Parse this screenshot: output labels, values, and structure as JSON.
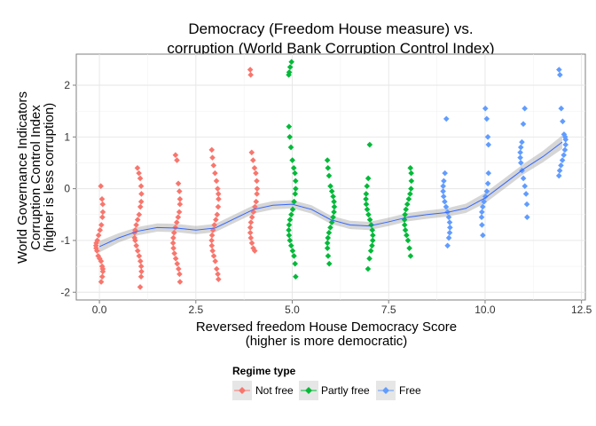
{
  "chart_data": {
    "type": "scatter",
    "title_lines": [
      "Democracy (Freedom House measure) vs.",
      "corruption (World Bank Corruption Control Index)"
    ],
    "xlabel_lines": [
      "Reversed freedom House Democracy Score",
      "(higher is more democratic)"
    ],
    "ylabel_lines": [
      "World Governance Indicators",
      "Corruption Control Index",
      "(higher is less corruption)"
    ],
    "xlim": [
      -0.6,
      12.6
    ],
    "ylim": [
      -2.15,
      2.6
    ],
    "x_ticks": [
      0,
      2.5,
      5,
      7.5,
      10,
      12.5
    ],
    "x_tick_labels": [
      "0.0",
      "2.5",
      "5.0",
      "7.5",
      "10.0",
      "12.5"
    ],
    "y_ticks": [
      -2,
      -1,
      0,
      1,
      2
    ],
    "y_tick_labels": [
      "-2",
      "-1",
      "0",
      "1",
      "2"
    ],
    "grid": true,
    "legend": {
      "title": "Regime type",
      "position": "bottom",
      "entries": [
        {
          "label": "Not free",
          "color": "#F8766D"
        },
        {
          "label": "Partly free",
          "color": "#00BA38"
        },
        {
          "label": "Free",
          "color": "#619CFF"
        }
      ]
    },
    "series": [
      {
        "name": "Not free",
        "color": "#F8766D",
        "points": [
          [
            0,
            0.05
          ],
          [
            0,
            -0.2
          ],
          [
            0,
            -0.3
          ],
          [
            0,
            -0.45
          ],
          [
            0,
            -0.55
          ],
          [
            0,
            -0.7
          ],
          [
            0,
            -0.8
          ],
          [
            0,
            -0.9
          ],
          [
            0,
            -1.0
          ],
          [
            0,
            -1.05
          ],
          [
            0,
            -1.1
          ],
          [
            0,
            -1.15
          ],
          [
            0,
            -1.2
          ],
          [
            0,
            -1.3
          ],
          [
            0,
            -1.35
          ],
          [
            0,
            -1.4
          ],
          [
            0,
            -1.5
          ],
          [
            0,
            -1.55
          ],
          [
            0,
            -1.6
          ],
          [
            0,
            -1.7
          ],
          [
            0,
            -1.8
          ],
          [
            1,
            0.4
          ],
          [
            1,
            0.3
          ],
          [
            1,
            0.2
          ],
          [
            1,
            0.05
          ],
          [
            1,
            -0.1
          ],
          [
            1,
            -0.25
          ],
          [
            1,
            -0.35
          ],
          [
            1,
            -0.5
          ],
          [
            1,
            -0.6
          ],
          [
            1,
            -0.7
          ],
          [
            1,
            -0.8
          ],
          [
            1,
            -0.85
          ],
          [
            1,
            -0.95
          ],
          [
            1,
            -1.0
          ],
          [
            1,
            -1.1
          ],
          [
            1,
            -1.2
          ],
          [
            1,
            -1.3
          ],
          [
            1,
            -1.4
          ],
          [
            1,
            -1.5
          ],
          [
            1,
            -1.6
          ],
          [
            1,
            -1.7
          ],
          [
            1,
            -1.9
          ],
          [
            2,
            0.65
          ],
          [
            2,
            0.55
          ],
          [
            2,
            0.1
          ],
          [
            2,
            -0.05
          ],
          [
            2,
            -0.2
          ],
          [
            2,
            -0.3
          ],
          [
            2,
            -0.45
          ],
          [
            2,
            -0.55
          ],
          [
            2,
            -0.65
          ],
          [
            2,
            -0.75
          ],
          [
            2,
            -0.85
          ],
          [
            2,
            -0.95
          ],
          [
            2,
            -1.05
          ],
          [
            2,
            -1.15
          ],
          [
            2,
            -1.25
          ],
          [
            2,
            -1.35
          ],
          [
            2,
            -1.45
          ],
          [
            2,
            -1.55
          ],
          [
            2,
            -1.65
          ],
          [
            2,
            -1.8
          ],
          [
            3,
            0.75
          ],
          [
            3,
            0.6
          ],
          [
            3,
            0.45
          ],
          [
            3,
            0.3
          ],
          [
            3,
            0.15
          ],
          [
            3,
            0.0
          ],
          [
            3,
            -0.1
          ],
          [
            3,
            -0.2
          ],
          [
            3,
            -0.35
          ],
          [
            3,
            -0.5
          ],
          [
            3,
            -0.6
          ],
          [
            3,
            -0.7
          ],
          [
            3,
            -0.8
          ],
          [
            3,
            -0.9
          ],
          [
            3,
            -1.0
          ],
          [
            3,
            -1.1
          ],
          [
            3,
            -1.2
          ],
          [
            3,
            -1.3
          ],
          [
            3,
            -1.4
          ],
          [
            3,
            -1.55
          ],
          [
            3,
            -1.65
          ],
          [
            3,
            -1.75
          ],
          [
            4,
            2.3
          ],
          [
            4,
            2.2
          ],
          [
            4,
            0.7
          ],
          [
            4,
            0.55
          ],
          [
            4,
            0.4
          ],
          [
            4,
            0.3
          ],
          [
            4,
            0.15
          ],
          [
            4,
            0.0
          ],
          [
            4,
            -0.1
          ],
          [
            4,
            -0.25
          ],
          [
            4,
            -0.35
          ],
          [
            4,
            -0.45
          ],
          [
            4,
            -0.55
          ],
          [
            4,
            -0.65
          ],
          [
            4,
            -0.75
          ],
          [
            4,
            -0.85
          ],
          [
            4,
            -0.95
          ],
          [
            4,
            -1.05
          ],
          [
            4,
            -1.15
          ],
          [
            4,
            -1.2
          ]
        ]
      },
      {
        "name": "Partly free",
        "color": "#00BA38",
        "points": [
          [
            5,
            2.45
          ],
          [
            5,
            2.35
          ],
          [
            5,
            2.25
          ],
          [
            5,
            2.2
          ],
          [
            5,
            1.2
          ],
          [
            5,
            1.0
          ],
          [
            5,
            0.8
          ],
          [
            5,
            0.55
          ],
          [
            5,
            0.4
          ],
          [
            5,
            0.3
          ],
          [
            5,
            0.15
          ],
          [
            5,
            0.0
          ],
          [
            5,
            -0.1
          ],
          [
            5,
            -0.25
          ],
          [
            5,
            -0.4
          ],
          [
            5,
            -0.5
          ],
          [
            5,
            -0.6
          ],
          [
            5,
            -0.7
          ],
          [
            5,
            -0.8
          ],
          [
            5,
            -0.9
          ],
          [
            5,
            -1.0
          ],
          [
            5,
            -1.1
          ],
          [
            5,
            -1.2
          ],
          [
            5,
            -1.3
          ],
          [
            5,
            -1.45
          ],
          [
            5,
            -1.7
          ],
          [
            6,
            0.55
          ],
          [
            6,
            0.4
          ],
          [
            6,
            0.25
          ],
          [
            6,
            0.05
          ],
          [
            6,
            -0.05
          ],
          [
            6,
            -0.15
          ],
          [
            6,
            -0.25
          ],
          [
            6,
            -0.35
          ],
          [
            6,
            -0.45
          ],
          [
            6,
            -0.55
          ],
          [
            6,
            -0.65
          ],
          [
            6,
            -0.75
          ],
          [
            6,
            -0.85
          ],
          [
            6,
            -0.95
          ],
          [
            6,
            -1.05
          ],
          [
            6,
            -1.15
          ],
          [
            6,
            -1.3
          ],
          [
            6,
            -1.45
          ],
          [
            7,
            0.85
          ],
          [
            7,
            0.2
          ],
          [
            7,
            0.05
          ],
          [
            7,
            -0.1
          ],
          [
            7,
            -0.2
          ],
          [
            7,
            -0.3
          ],
          [
            7,
            -0.4
          ],
          [
            7,
            -0.5
          ],
          [
            7,
            -0.6
          ],
          [
            7,
            -0.7
          ],
          [
            7,
            -0.8
          ],
          [
            7,
            -0.9
          ],
          [
            7,
            -1.0
          ],
          [
            7,
            -1.1
          ],
          [
            7,
            -1.2
          ],
          [
            7,
            -1.35
          ],
          [
            7,
            -1.55
          ],
          [
            8,
            0.4
          ],
          [
            8,
            0.3
          ],
          [
            8,
            0.15
          ],
          [
            8,
            0.0
          ],
          [
            8,
            -0.1
          ],
          [
            8,
            -0.2
          ],
          [
            8,
            -0.3
          ],
          [
            8,
            -0.4
          ],
          [
            8,
            -0.5
          ],
          [
            8,
            -0.6
          ],
          [
            8,
            -0.7
          ],
          [
            8,
            -0.8
          ],
          [
            8,
            -0.9
          ],
          [
            8,
            -1.0
          ],
          [
            8,
            -1.15
          ],
          [
            8,
            -1.3
          ]
        ]
      },
      {
        "name": "Free",
        "color": "#619CFF",
        "points": [
          [
            9,
            1.35
          ],
          [
            9,
            0.3
          ],
          [
            9,
            0.15
          ],
          [
            9,
            0.05
          ],
          [
            9,
            -0.05
          ],
          [
            9,
            -0.15
          ],
          [
            9,
            -0.25
          ],
          [
            9,
            -0.35
          ],
          [
            9,
            -0.45
          ],
          [
            9,
            -0.55
          ],
          [
            9,
            -0.65
          ],
          [
            9,
            -0.75
          ],
          [
            9,
            -0.85
          ],
          [
            9,
            -0.95
          ],
          [
            9,
            -1.1
          ],
          [
            10,
            1.55
          ],
          [
            10,
            1.35
          ],
          [
            10,
            1.0
          ],
          [
            10,
            0.85
          ],
          [
            10,
            0.3
          ],
          [
            10,
            0.1
          ],
          [
            10,
            -0.05
          ],
          [
            10,
            -0.15
          ],
          [
            10,
            -0.25
          ],
          [
            10,
            -0.35
          ],
          [
            10,
            -0.45
          ],
          [
            10,
            -0.55
          ],
          [
            10,
            -0.7
          ],
          [
            10,
            -0.9
          ],
          [
            11,
            1.55
          ],
          [
            11,
            1.25
          ],
          [
            11,
            0.9
          ],
          [
            11,
            0.8
          ],
          [
            11,
            0.7
          ],
          [
            11,
            0.6
          ],
          [
            11,
            0.5
          ],
          [
            11,
            0.35
          ],
          [
            11,
            0.2
          ],
          [
            11,
            0.05
          ],
          [
            11,
            -0.1
          ],
          [
            11,
            -0.3
          ],
          [
            11,
            -0.55
          ],
          [
            12,
            2.3
          ],
          [
            12,
            2.2
          ],
          [
            12,
            1.55
          ],
          [
            12,
            1.3
          ],
          [
            12,
            1.05
          ],
          [
            12,
            1.0
          ],
          [
            12,
            0.95
          ],
          [
            12,
            0.85
          ],
          [
            12,
            0.75
          ],
          [
            12,
            0.65
          ],
          [
            12,
            0.55
          ],
          [
            12,
            0.45
          ],
          [
            12,
            0.35
          ],
          [
            12,
            0.25
          ]
        ]
      }
    ],
    "smooth": {
      "color": "#3366FF",
      "band_color": "#999999",
      "x": [
        0,
        0.5,
        1,
        1.5,
        2,
        2.5,
        3,
        3.5,
        4,
        4.5,
        5,
        5.5,
        6,
        6.5,
        7,
        7.5,
        8,
        8.5,
        9,
        9.5,
        10,
        10.5,
        11,
        11.5,
        12
      ],
      "y": [
        -1.12,
        -0.95,
        -0.82,
        -0.75,
        -0.76,
        -0.8,
        -0.76,
        -0.58,
        -0.4,
        -0.32,
        -0.3,
        -0.4,
        -0.6,
        -0.7,
        -0.72,
        -0.64,
        -0.55,
        -0.5,
        -0.46,
        -0.38,
        -0.18,
        0.1,
        0.38,
        0.62,
        0.9
      ],
      "se": [
        0.11,
        0.09,
        0.08,
        0.08,
        0.08,
        0.08,
        0.08,
        0.08,
        0.08,
        0.08,
        0.08,
        0.08,
        0.08,
        0.08,
        0.08,
        0.08,
        0.08,
        0.08,
        0.08,
        0.09,
        0.1,
        0.1,
        0.1,
        0.11,
        0.13
      ]
    }
  }
}
